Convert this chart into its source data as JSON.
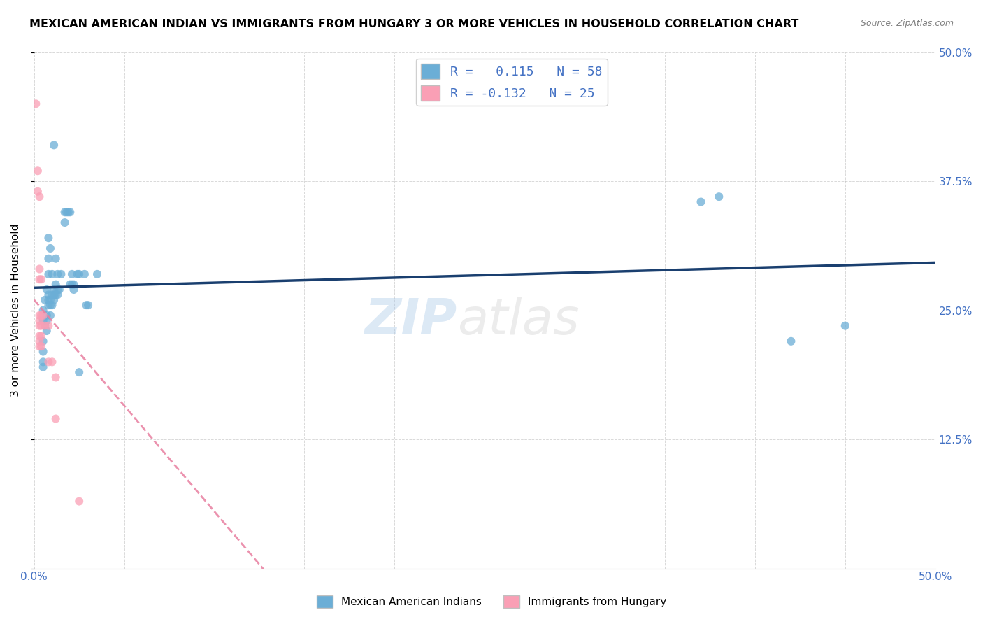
{
  "title": "MEXICAN AMERICAN INDIAN VS IMMIGRANTS FROM HUNGARY 3 OR MORE VEHICLES IN HOUSEHOLD CORRELATION CHART",
  "source": "Source: ZipAtlas.com",
  "ylabel": "3 or more Vehicles in Household",
  "xlim": [
    0.0,
    0.5
  ],
  "ylim": [
    0.0,
    0.5
  ],
  "yticks": [
    0.0,
    0.125,
    0.25,
    0.375,
    0.5
  ],
  "ytick_labels": [
    "",
    "12.5%",
    "25.0%",
    "37.5%",
    "50.0%"
  ],
  "r_blue": 0.115,
  "r_pink": -0.132,
  "color_blue": "#6baed6",
  "color_pink": "#fa9fb5",
  "trendline_blue_color": "#1a3f6f",
  "trendline_pink_color": "#e87fa0",
  "blue_scatter": [
    [
      0.005,
      0.25
    ],
    [
      0.005,
      0.24
    ],
    [
      0.005,
      0.22
    ],
    [
      0.005,
      0.21
    ],
    [
      0.005,
      0.2
    ],
    [
      0.005,
      0.195
    ],
    [
      0.006,
      0.26
    ],
    [
      0.006,
      0.235
    ],
    [
      0.007,
      0.27
    ],
    [
      0.007,
      0.245
    ],
    [
      0.007,
      0.24
    ],
    [
      0.007,
      0.23
    ],
    [
      0.008,
      0.32
    ],
    [
      0.008,
      0.3
    ],
    [
      0.008,
      0.285
    ],
    [
      0.008,
      0.265
    ],
    [
      0.008,
      0.26
    ],
    [
      0.008,
      0.255
    ],
    [
      0.009,
      0.31
    ],
    [
      0.009,
      0.26
    ],
    [
      0.009,
      0.255
    ],
    [
      0.009,
      0.245
    ],
    [
      0.01,
      0.285
    ],
    [
      0.01,
      0.265
    ],
    [
      0.01,
      0.255
    ],
    [
      0.011,
      0.41
    ],
    [
      0.011,
      0.27
    ],
    [
      0.011,
      0.265
    ],
    [
      0.011,
      0.26
    ],
    [
      0.012,
      0.3
    ],
    [
      0.012,
      0.275
    ],
    [
      0.012,
      0.265
    ],
    [
      0.013,
      0.285
    ],
    [
      0.013,
      0.27
    ],
    [
      0.013,
      0.265
    ],
    [
      0.014,
      0.27
    ],
    [
      0.015,
      0.285
    ],
    [
      0.017,
      0.345
    ],
    [
      0.017,
      0.335
    ],
    [
      0.018,
      0.345
    ],
    [
      0.019,
      0.345
    ],
    [
      0.02,
      0.345
    ],
    [
      0.02,
      0.275
    ],
    [
      0.021,
      0.285
    ],
    [
      0.021,
      0.275
    ],
    [
      0.022,
      0.275
    ],
    [
      0.022,
      0.27
    ],
    [
      0.024,
      0.285
    ],
    [
      0.025,
      0.285
    ],
    [
      0.025,
      0.19
    ],
    [
      0.028,
      0.285
    ],
    [
      0.029,
      0.255
    ],
    [
      0.03,
      0.255
    ],
    [
      0.035,
      0.285
    ],
    [
      0.37,
      0.355
    ],
    [
      0.38,
      0.36
    ],
    [
      0.42,
      0.22
    ],
    [
      0.45,
      0.235
    ]
  ],
  "pink_scatter": [
    [
      0.001,
      0.45
    ],
    [
      0.002,
      0.385
    ],
    [
      0.002,
      0.365
    ],
    [
      0.003,
      0.36
    ],
    [
      0.003,
      0.29
    ],
    [
      0.003,
      0.28
    ],
    [
      0.003,
      0.245
    ],
    [
      0.003,
      0.24
    ],
    [
      0.003,
      0.235
    ],
    [
      0.003,
      0.225
    ],
    [
      0.003,
      0.22
    ],
    [
      0.003,
      0.215
    ],
    [
      0.004,
      0.28
    ],
    [
      0.004,
      0.245
    ],
    [
      0.004,
      0.235
    ],
    [
      0.004,
      0.225
    ],
    [
      0.004,
      0.215
    ],
    [
      0.005,
      0.245
    ],
    [
      0.006,
      0.235
    ],
    [
      0.008,
      0.235
    ],
    [
      0.008,
      0.2
    ],
    [
      0.01,
      0.2
    ],
    [
      0.012,
      0.185
    ],
    [
      0.012,
      0.145
    ],
    [
      0.025,
      0.065
    ]
  ]
}
